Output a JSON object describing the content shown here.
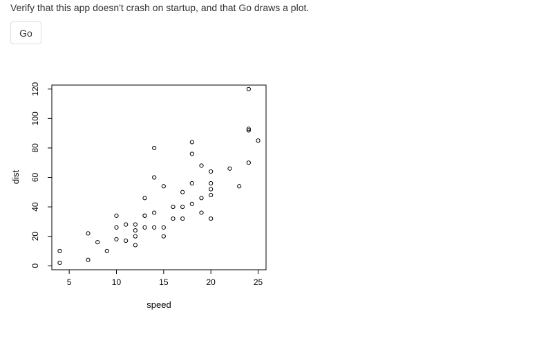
{
  "app": {
    "instructions": "Verify that this app doesn't crash on startup, and that Go draws a plot.",
    "go_label": "Go"
  },
  "chart_data": {
    "type": "scatter",
    "title": "",
    "xlabel": "speed",
    "ylabel": "dist",
    "xlim": [
      3.16,
      25.84
    ],
    "ylim": [
      -2.72,
      122.72
    ],
    "xticks": [
      5,
      10,
      15,
      20,
      25
    ],
    "yticks": [
      0,
      20,
      40,
      60,
      80,
      100,
      120
    ],
    "grid": false,
    "marker": "open-circle",
    "points": [
      [
        4,
        2
      ],
      [
        4,
        10
      ],
      [
        7,
        4
      ],
      [
        7,
        22
      ],
      [
        8,
        16
      ],
      [
        9,
        10
      ],
      [
        10,
        18
      ],
      [
        10,
        26
      ],
      [
        10,
        34
      ],
      [
        11,
        17
      ],
      [
        11,
        28
      ],
      [
        12,
        14
      ],
      [
        12,
        20
      ],
      [
        12,
        24
      ],
      [
        12,
        28
      ],
      [
        13,
        26
      ],
      [
        13,
        34
      ],
      [
        13,
        34
      ],
      [
        13,
        46
      ],
      [
        14,
        26
      ],
      [
        14,
        36
      ],
      [
        14,
        60
      ],
      [
        14,
        80
      ],
      [
        15,
        20
      ],
      [
        15,
        26
      ],
      [
        15,
        54
      ],
      [
        16,
        32
      ],
      [
        16,
        40
      ],
      [
        17,
        32
      ],
      [
        17,
        40
      ],
      [
        17,
        50
      ],
      [
        18,
        42
      ],
      [
        18,
        56
      ],
      [
        18,
        76
      ],
      [
        18,
        84
      ],
      [
        19,
        36
      ],
      [
        19,
        46
      ],
      [
        19,
        68
      ],
      [
        20,
        32
      ],
      [
        20,
        48
      ],
      [
        20,
        52
      ],
      [
        20,
        56
      ],
      [
        20,
        64
      ],
      [
        22,
        66
      ],
      [
        23,
        54
      ],
      [
        24,
        70
      ],
      [
        24,
        92
      ],
      [
        24,
        93
      ],
      [
        24,
        120
      ],
      [
        25,
        85
      ]
    ]
  }
}
